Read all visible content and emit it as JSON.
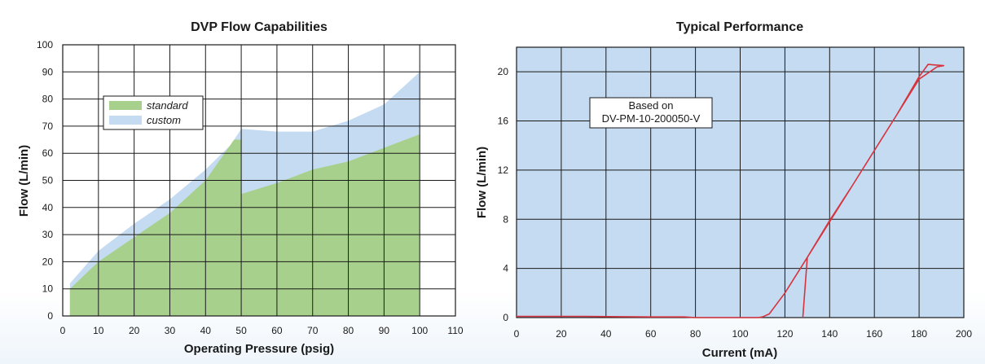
{
  "chart_data": [
    {
      "type": "area",
      "title": "DVP Flow Capabilities",
      "xlabel": "Operating Pressure (psig)",
      "ylabel": "Flow  (L/min)",
      "xlim": [
        0,
        110
      ],
      "ylim": [
        0,
        100
      ],
      "xticks": [
        0,
        10,
        20,
        30,
        40,
        50,
        60,
        70,
        80,
        90,
        100,
        110
      ],
      "yticks": [
        0,
        10,
        20,
        30,
        40,
        50,
        60,
        70,
        80,
        90,
        100
      ],
      "grid": true,
      "legend_position": "upper-left",
      "colors": {
        "standard": "#a8d08d",
        "custom": "#c5dbf1",
        "grid": "#1a1a1a",
        "plot_bg": "#ffffff"
      },
      "series": [
        {
          "name": "custom",
          "x": [
            2,
            10,
            20,
            30,
            40,
            47,
            50,
            60,
            70,
            80,
            90,
            100,
            100,
            2
          ],
          "y": [
            12,
            24,
            34,
            43,
            54,
            63,
            69,
            68,
            68,
            72,
            78,
            90,
            0,
            0
          ]
        },
        {
          "name": "standard",
          "x": [
            2,
            10,
            20,
            30,
            40,
            48,
            50,
            50,
            60,
            70,
            80,
            90,
            100,
            100,
            2
          ],
          "y": [
            10,
            20,
            29,
            38,
            50,
            65,
            65,
            45,
            49,
            54,
            57,
            62,
            67,
            0,
            0
          ]
        }
      ]
    },
    {
      "type": "line",
      "title": "Typical Performance",
      "xlabel": "Current (mA)",
      "ylabel": "Flow (L/min)",
      "xlim": [
        0,
        200
      ],
      "ylim": [
        0,
        22
      ],
      "xticks": [
        0,
        20,
        40,
        60,
        80,
        100,
        120,
        140,
        160,
        180,
        200
      ],
      "yticks": [
        0,
        4,
        8,
        12,
        16,
        20
      ],
      "grid": true,
      "annotation": "Based on DV-PM-10-200050-V",
      "annotation_lines": [
        "Based on",
        "DV-PM-10-200050-V"
      ],
      "colors": {
        "plot_bg": "#c5dbf1",
        "line": "#d6333e",
        "grid": "#1a1a1a"
      },
      "series": [
        {
          "x": [
            0,
            30,
            60,
            75,
            80,
            100,
            108,
            110,
            113,
            120,
            130,
            140,
            150,
            160,
            170,
            180,
            184,
            191,
            188,
            180,
            170,
            160,
            150,
            140,
            130,
            128
          ],
          "y": [
            0.1,
            0.1,
            0.05,
            0.05,
            0.0,
            0.0,
            0.0,
            0.05,
            0.3,
            2.0,
            4.9,
            7.8,
            10.7,
            13.6,
            16.5,
            19.6,
            20.6,
            20.5,
            20.4,
            19.4,
            16.5,
            13.6,
            10.7,
            7.9,
            4.9,
            0.0
          ]
        }
      ]
    }
  ]
}
